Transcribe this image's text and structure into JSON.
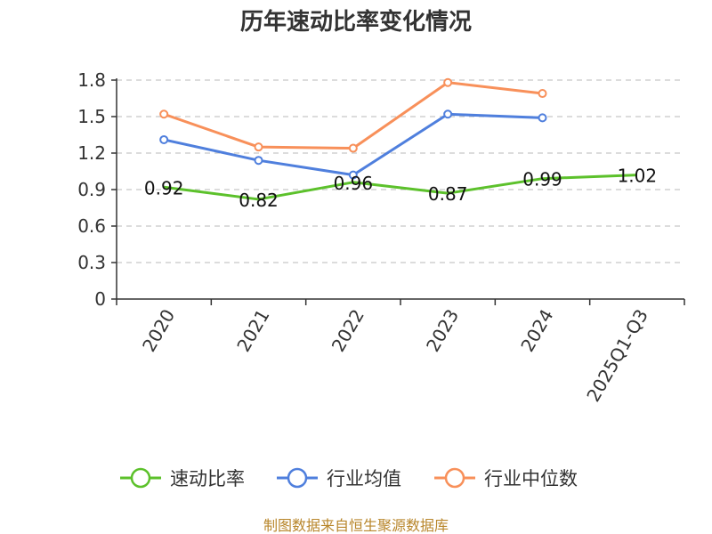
{
  "chart_data": {
    "type": "line",
    "title": "历年速动比率变化情况",
    "categories": [
      "2020",
      "2021",
      "2022",
      "2023",
      "2024",
      "2025Q1-Q3"
    ],
    "ylim": [
      0,
      1.8
    ],
    "yticks": [
      "0",
      "0.3",
      "0.6",
      "0.9",
      "1.2",
      "1.5",
      "1.8"
    ],
    "grid": true,
    "legend_position": "bottom",
    "series": [
      {
        "name": "速动比率",
        "color": "#5cc12b",
        "values": [
          0.92,
          0.82,
          0.96,
          0.87,
          0.99,
          1.02
        ],
        "labels": [
          "0.92",
          "0.82",
          "0.96",
          "0.87",
          "0.99",
          "1.02"
        ]
      },
      {
        "name": "行业均值",
        "color": "#4f7fdd",
        "values": [
          1.31,
          1.14,
          1.02,
          1.52,
          1.49,
          null
        ]
      },
      {
        "name": "行业中位数",
        "color": "#f8905a",
        "values": [
          1.52,
          1.25,
          1.24,
          1.78,
          1.69,
          null
        ]
      }
    ]
  },
  "source": "制图数据来自恒生聚源数据库"
}
